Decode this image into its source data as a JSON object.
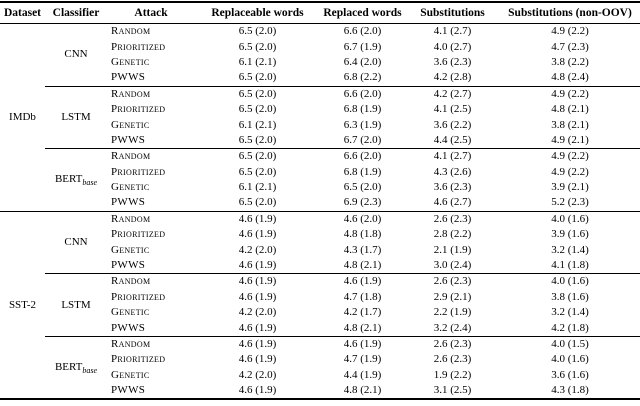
{
  "table": {
    "headers": {
      "dataset": "Dataset",
      "classifier": "Classifier",
      "attack": "Attack",
      "replaceable_words": "Replaceable words",
      "replaced_words": "Replaced words",
      "substitutions": "Substitutions",
      "substitutions_non_oov": "Substitutions (non-OOV)"
    },
    "datasets": [
      {
        "name": "IMDb",
        "classifiers": [
          {
            "name": "CNN",
            "rows": [
              {
                "attack": "Random",
                "values": [
                  "6.5 (2.0)",
                  "6.6 (2.0)",
                  "4.1 (2.7)",
                  "4.9 (2.2)"
                ]
              },
              {
                "attack": "Prioritized",
                "values": [
                  "6.5 (2.0)",
                  "6.7 (1.9)",
                  "4.0 (2.7)",
                  "4.7 (2.3)"
                ]
              },
              {
                "attack": "Genetic",
                "values": [
                  "6.1 (2.1)",
                  "6.4 (2.0)",
                  "3.6 (2.3)",
                  "3.8 (2.2)"
                ]
              },
              {
                "attack": "PWWS",
                "values": [
                  "6.5 (2.0)",
                  "6.8 (2.2)",
                  "4.2 (2.8)",
                  "4.8 (2.4)"
                ]
              }
            ]
          },
          {
            "name": "LSTM",
            "rows": [
              {
                "attack": "Random",
                "values": [
                  "6.5 (2.0)",
                  "6.6 (2.0)",
                  "4.2 (2.7)",
                  "4.9 (2.2)"
                ]
              },
              {
                "attack": "Prioritized",
                "values": [
                  "6.5 (2.0)",
                  "6.8 (1.9)",
                  "4.1 (2.5)",
                  "4.8 (2.1)"
                ]
              },
              {
                "attack": "Genetic",
                "values": [
                  "6.1 (2.1)",
                  "6.3 (1.9)",
                  "3.6 (2.2)",
                  "3.8 (2.1)"
                ]
              },
              {
                "attack": "PWWS",
                "values": [
                  "6.5 (2.0)",
                  "6.7 (2.0)",
                  "4.4 (2.5)",
                  "4.9 (2.1)"
                ]
              }
            ]
          },
          {
            "name": "BERT",
            "sub": "base",
            "rows": [
              {
                "attack": "Random",
                "values": [
                  "6.5 (2.0)",
                  "6.6 (2.0)",
                  "4.1 (2.7)",
                  "4.9 (2.2)"
                ]
              },
              {
                "attack": "Prioritized",
                "values": [
                  "6.5 (2.0)",
                  "6.8 (1.9)",
                  "4.3 (2.6)",
                  "4.9 (2.2)"
                ]
              },
              {
                "attack": "Genetic",
                "values": [
                  "6.1 (2.1)",
                  "6.5 (2.0)",
                  "3.6 (2.3)",
                  "3.9 (2.1)"
                ]
              },
              {
                "attack": "PWWS",
                "values": [
                  "6.5 (2.0)",
                  "6.9 (2.3)",
                  "4.6 (2.7)",
                  "5.2 (2.3)"
                ]
              }
            ]
          }
        ]
      },
      {
        "name": "SST-2",
        "classifiers": [
          {
            "name": "CNN",
            "rows": [
              {
                "attack": "Random",
                "values": [
                  "4.6 (1.9)",
                  "4.6 (2.0)",
                  "2.6 (2.3)",
                  "4.0 (1.6)"
                ]
              },
              {
                "attack": "Prioritized",
                "values": [
                  "4.6 (1.9)",
                  "4.8 (1.8)",
                  "2.8 (2.2)",
                  "3.9 (1.6)"
                ]
              },
              {
                "attack": "Genetic",
                "values": [
                  "4.2 (2.0)",
                  "4.3 (1.7)",
                  "2.1 (1.9)",
                  "3.2 (1.4)"
                ]
              },
              {
                "attack": "PWWS",
                "values": [
                  "4.6 (1.9)",
                  "4.8 (2.1)",
                  "3.0 (2.4)",
                  "4.1 (1.8)"
                ]
              }
            ]
          },
          {
            "name": "LSTM",
            "rows": [
              {
                "attack": "Random",
                "values": [
                  "4.6 (1.9)",
                  "4.6 (1.9)",
                  "2.6 (2.3)",
                  "4.0 (1.6)"
                ]
              },
              {
                "attack": "Prioritized",
                "values": [
                  "4.6 (1.9)",
                  "4.7 (1.8)",
                  "2.9 (2.1)",
                  "3.8 (1.6)"
                ]
              },
              {
                "attack": "Genetic",
                "values": [
                  "4.2 (2.0)",
                  "4.2 (1.7)",
                  "2.2 (1.9)",
                  "3.2 (1.4)"
                ]
              },
              {
                "attack": "PWWS",
                "values": [
                  "4.6 (1.9)",
                  "4.8 (2.1)",
                  "3.2 (2.4)",
                  "4.2 (1.8)"
                ]
              }
            ]
          },
          {
            "name": "BERT",
            "sub": "base",
            "rows": [
              {
                "attack": "Random",
                "values": [
                  "4.6 (1.9)",
                  "4.6 (1.9)",
                  "2.6 (2.3)",
                  "4.0 (1.5)"
                ]
              },
              {
                "attack": "Prioritized",
                "values": [
                  "4.6 (1.9)",
                  "4.7 (1.9)",
                  "2.6 (2.3)",
                  "4.0 (1.6)"
                ]
              },
              {
                "attack": "Genetic",
                "values": [
                  "4.2 (2.0)",
                  "4.4 (1.9)",
                  "1.9 (2.2)",
                  "3.6 (1.6)"
                ]
              },
              {
                "attack": "PWWS",
                "values": [
                  "4.6 (1.9)",
                  "4.8 (2.1)",
                  "3.1 (2.5)",
                  "4.3 (1.8)"
                ]
              }
            ]
          }
        ]
      }
    ]
  }
}
